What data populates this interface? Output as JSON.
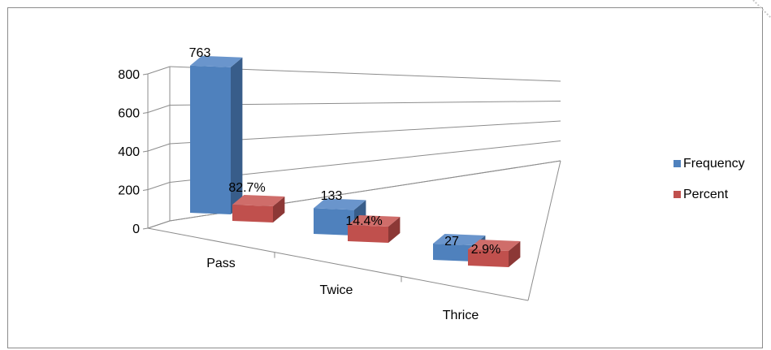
{
  "chart_data": {
    "type": "bar",
    "title": "",
    "xlabel": "",
    "ylabel": "",
    "ylim": [
      0,
      800
    ],
    "yticks": [
      "0",
      "200",
      "400",
      "600",
      "800"
    ],
    "categories": [
      "Pass",
      "Twice",
      "Thrice"
    ],
    "series": [
      {
        "name": "Frequency",
        "values": [
          763,
          133,
          27
        ],
        "labels": [
          "763",
          "133",
          "27"
        ]
      },
      {
        "name": "Percent",
        "values": [
          82.7,
          14.4,
          2.9
        ],
        "labels": [
          "82.7%",
          "14.4%",
          "2.9%"
        ]
      }
    ],
    "legend": "right",
    "grid": true,
    "three_d": true
  },
  "colors": {
    "frequency_front": "#4f81bd",
    "frequency_side": "#385d8a",
    "frequency_top": "#6a95cc",
    "percent_front": "#c0504d",
    "percent_side": "#8c3836",
    "percent_top": "#cf6d6a",
    "gridline": "#8c8c8c"
  }
}
